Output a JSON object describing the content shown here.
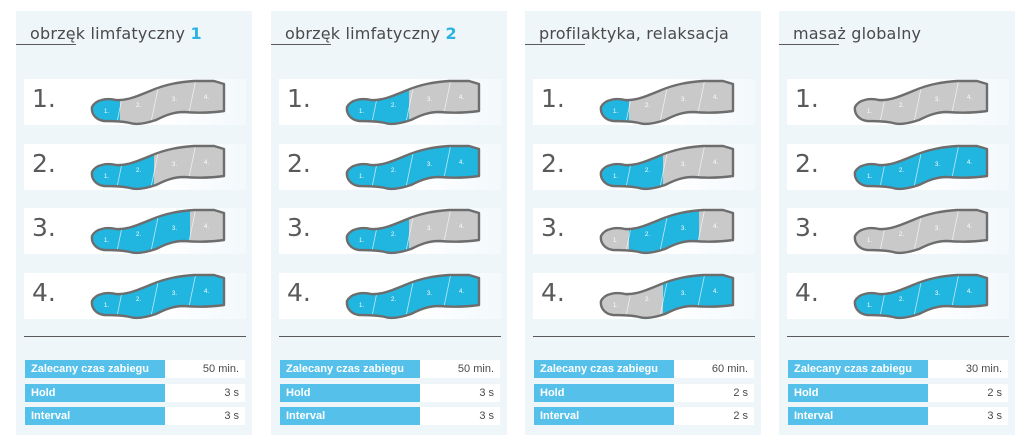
{
  "colors": {
    "active": "#21b6e0",
    "inactive": "#c9c9c9",
    "outline": "#6d6d6d",
    "accent": "#2ab3e3",
    "label_bg": "#55c1ea"
  },
  "panels": [
    {
      "title": "obrzęk limfatyczny",
      "title_num": "1",
      "steps": [
        "1.",
        "2.",
        "3.",
        "4."
      ],
      "legs": [
        [
          1,
          0,
          0,
          0
        ],
        [
          1,
          1,
          0,
          0
        ],
        [
          1,
          1,
          1,
          0
        ],
        [
          1,
          1,
          1,
          1
        ]
      ],
      "params": [
        {
          "label": "Zalecany czas zabiegu",
          "value": "50 min."
        },
        {
          "label": "Hold",
          "value": "3 s"
        },
        {
          "label": "Interval",
          "value": "3 s"
        }
      ]
    },
    {
      "title": "obrzęk limfatyczny",
      "title_num": "2",
      "steps": [
        "1.",
        "2.",
        "3.",
        "4."
      ],
      "legs": [
        [
          1,
          1,
          0,
          0
        ],
        [
          1,
          1,
          1,
          1
        ],
        [
          1,
          1,
          0,
          0
        ],
        [
          1,
          1,
          1,
          1
        ]
      ],
      "params": [
        {
          "label": "Zalecany czas zabiegu",
          "value": "50 min."
        },
        {
          "label": "Hold",
          "value": "3 s"
        },
        {
          "label": "Interval",
          "value": "3 s"
        }
      ]
    },
    {
      "title": "profilaktyka, relaksacja",
      "title_num": "",
      "steps": [
        "1.",
        "2.",
        "3.",
        "4."
      ],
      "legs": [
        [
          1,
          0,
          0,
          0
        ],
        [
          1,
          1,
          0,
          0
        ],
        [
          0,
          1,
          1,
          0
        ],
        [
          0,
          0,
          1,
          1
        ]
      ],
      "params": [
        {
          "label": "Zalecany czas zabiegu",
          "value": "60 min."
        },
        {
          "label": "Hold",
          "value": "2 s"
        },
        {
          "label": "Interval",
          "value": "2 s"
        }
      ]
    },
    {
      "title": "masaż globalny",
      "title_num": "",
      "steps": [
        "1.",
        "2.",
        "3.",
        "4."
      ],
      "legs": [
        [
          0,
          0,
          0,
          0
        ],
        [
          1,
          1,
          1,
          1
        ],
        [
          0,
          0,
          0,
          0
        ],
        [
          1,
          1,
          1,
          1
        ]
      ],
      "params": [
        {
          "label": "Zalecany czas zabiegu",
          "value": "30 min."
        },
        {
          "label": "Hold",
          "value": "2 s"
        },
        {
          "label": "Interval",
          "value": "3 s"
        }
      ]
    }
  ],
  "zone_labels": [
    "1.",
    "2.",
    "3.",
    "4."
  ]
}
